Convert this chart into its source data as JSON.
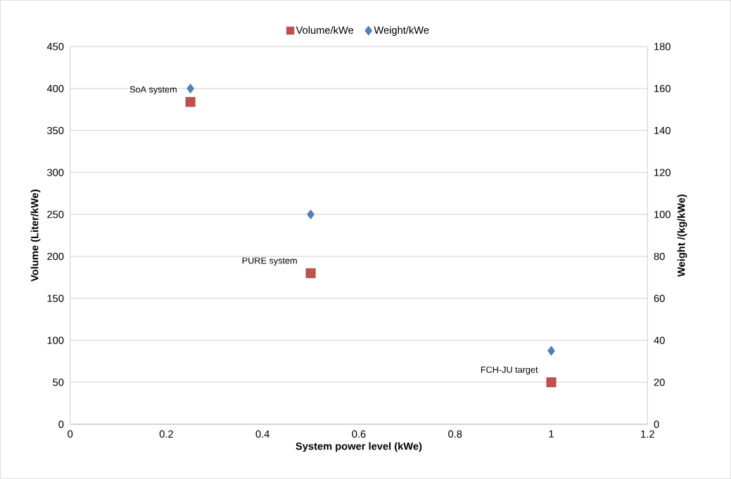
{
  "chart_data": {
    "type": "scatter",
    "xlabel": "System power level (kWe)",
    "ylabel": "Volume (Liter/kWe)",
    "y2label": "Weight /(kg/kWe)",
    "x": [
      0.25,
      0.5,
      1
    ],
    "series": [
      {
        "name": "Volume/kWe",
        "color": "#c0504d",
        "marker": "square",
        "values": [
          384,
          180,
          50
        ]
      },
      {
        "name": "Weight/kWe",
        "color": "#4f81bd",
        "marker": "diamond",
        "axis": "y2",
        "values": [
          160,
          100,
          35
        ]
      }
    ],
    "xlim": [
      0,
      1.2
    ],
    "xticks": [
      0,
      0.2,
      0.4,
      0.6,
      0.8,
      1,
      1.2
    ],
    "ylim": [
      0,
      450
    ],
    "yticks": [
      0,
      50,
      100,
      150,
      200,
      250,
      300,
      350,
      400,
      450
    ],
    "y2lim": [
      0,
      180
    ],
    "y2ticks": [
      0,
      20,
      40,
      60,
      80,
      100,
      120,
      140,
      160,
      180
    ],
    "grid": "y",
    "legend": "top",
    "annotations": [
      {
        "text": "SoA system",
        "x": 0.25,
        "y": 384
      },
      {
        "text": "PURE system",
        "x": 0.5,
        "y": 180
      },
      {
        "text": "FCH-JU target",
        "x": 1,
        "y": 50
      }
    ]
  }
}
